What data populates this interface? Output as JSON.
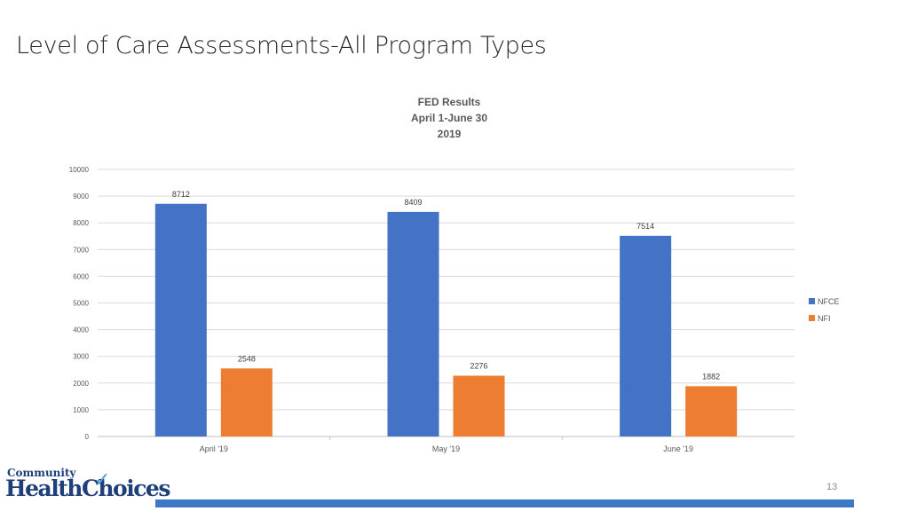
{
  "slide": {
    "title": "Level of Care Assessments-All Program Types",
    "page_number": "13"
  },
  "logo": {
    "line1": "Community",
    "line2": "HealthChoices"
  },
  "colors": {
    "nfce": "#4472c4",
    "nfi": "#ed7d31",
    "gridline": "#d9d9d9",
    "footer_bar": "#3c78c4"
  },
  "chart_data": {
    "type": "bar",
    "title": [
      "FED Results",
      "April 1-June 30",
      "2019"
    ],
    "categories": [
      "April '19",
      "May '19",
      "June '19"
    ],
    "series": [
      {
        "name": "NFCE",
        "values": [
          8712,
          8409,
          7514
        ],
        "color": "#4472c4"
      },
      {
        "name": "NFI",
        "values": [
          2548,
          2276,
          1882
        ],
        "color": "#ed7d31"
      }
    ],
    "ylim": [
      0,
      10000
    ],
    "yticks": [
      0,
      1000,
      2000,
      3000,
      4000,
      5000,
      6000,
      7000,
      8000,
      9000,
      10000
    ],
    "grid": true,
    "legend_position": "right",
    "data_labels": true
  }
}
